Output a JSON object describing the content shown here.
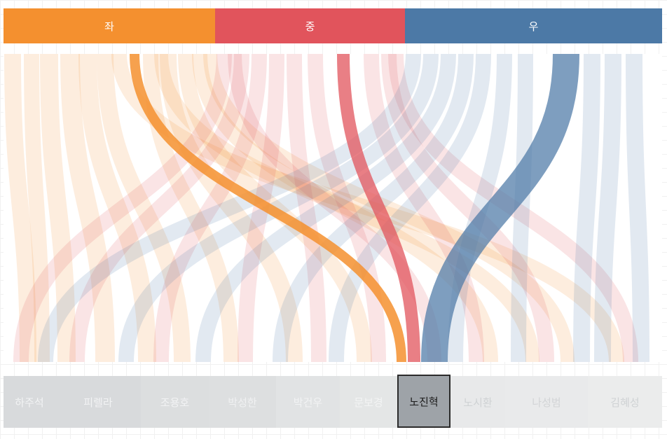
{
  "groups": [
    {
      "label": "좌",
      "color": "#f4902f"
    },
    {
      "label": "중",
      "color": "#e1545c"
    },
    {
      "label": "우",
      "color": "#4c79a6"
    }
  ],
  "candidates": [
    {
      "name": "하주석",
      "bg": "#d8dadc",
      "text": "#f2f3f4"
    },
    {
      "name": "피렐라",
      "bg": "#d8dadc",
      "text": "#f2f3f4"
    },
    {
      "name": "조용호",
      "bg": "#dcdedf",
      "text": "#f2f3f4"
    },
    {
      "name": "박성한",
      "bg": "#dddfe0",
      "text": "#f0f1f2"
    },
    {
      "name": "박건우",
      "bg": "#e1e3e4",
      "text": "#f2f3f4"
    },
    {
      "name": "문보경",
      "bg": "#e4e6e6",
      "text": "#f3f4f4"
    },
    {
      "name": "노진혁",
      "bg": "#9ea3a8",
      "text": "#1c1c1c"
    },
    {
      "name": "노시환",
      "bg": "#e8e9ea",
      "text": "#cfd2d4"
    },
    {
      "name": "나성범",
      "bg": "#e9eaeb",
      "text": "#d2d4d6"
    },
    {
      "name": "김혜성",
      "bg": "#ebecec",
      "text": "#cfd2d4"
    }
  ],
  "selected_candidate": "노진혁",
  "chart_data": {
    "type": "sankey",
    "sources": [
      "좌",
      "중",
      "우"
    ],
    "targets": [
      "하주석",
      "피렐라",
      "조용호",
      "박성한",
      "박건우",
      "문보경",
      "노진혁",
      "노시환",
      "나성범",
      "김혜성"
    ],
    "highlighted_target": "노진혁",
    "highlighted_flows": [
      {
        "from": "좌",
        "to": "노진혁"
      },
      {
        "from": "중",
        "to": "노진혁"
      },
      {
        "from": "우",
        "to": "노진혁"
      }
    ]
  }
}
